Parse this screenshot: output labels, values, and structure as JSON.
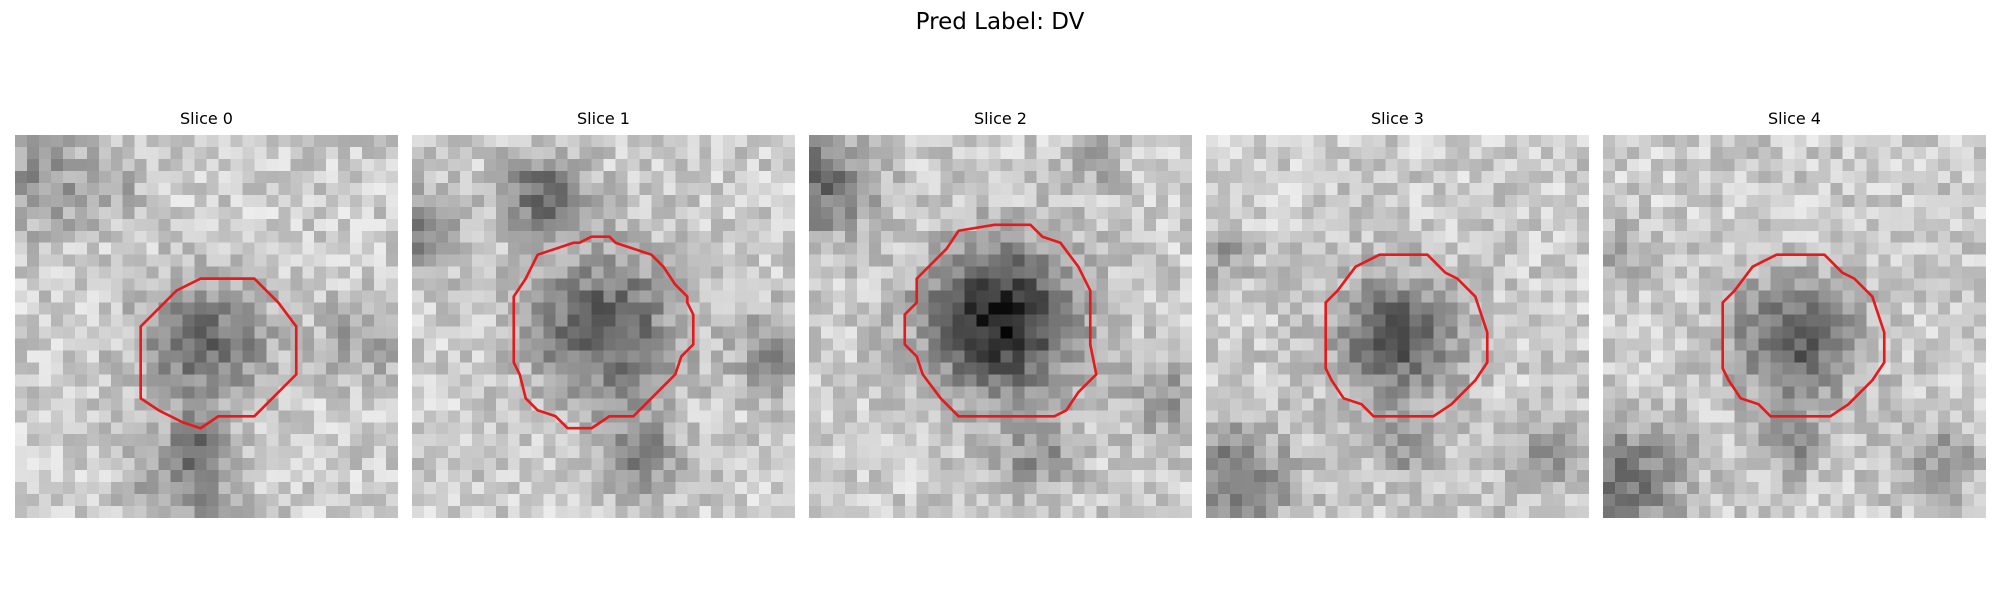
{
  "figure": {
    "title": "Pred Label: DV"
  },
  "slices": [
    {
      "title": "Slice 0"
    },
    {
      "title": "Slice 1"
    },
    {
      "title": "Slice 2"
    },
    {
      "title": "Slice 3"
    },
    {
      "title": "Slice 4"
    }
  ],
  "style": {
    "contour_color": "#e41a1c",
    "colormap": "grayscale"
  }
}
